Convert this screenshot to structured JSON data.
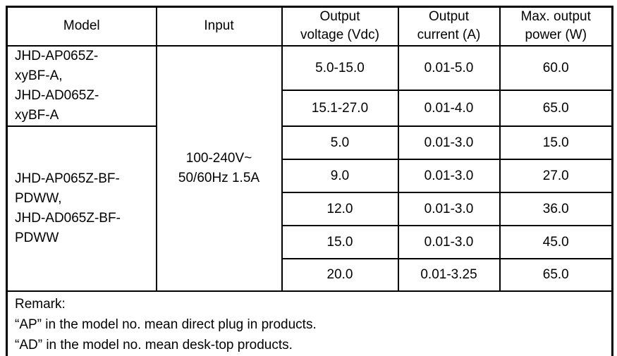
{
  "colors": {
    "background": "#ffffff",
    "text": "#000000",
    "border": "#000000"
  },
  "table": {
    "columns": [
      {
        "label": "Model",
        "lines": [
          "Model"
        ]
      },
      {
        "label": "Input",
        "lines": [
          "Input"
        ]
      },
      {
        "label": "Output voltage (Vdc)",
        "lines": [
          "Output",
          "voltage (Vdc)"
        ]
      },
      {
        "label": "Output current (A)",
        "lines": [
          "Output",
          "current (A)"
        ]
      },
      {
        "label": "Max. output power (W)",
        "lines": [
          "Max. output",
          "power (W)"
        ]
      }
    ],
    "input": {
      "value": "100-240V~ 50/60Hz 1.5A",
      "lines": [
        "100-240V~",
        "50/60Hz 1.5A"
      ]
    },
    "groups": [
      {
        "model": "JHD-AP065Z-xyBF-A, JHD-AD065Z-xyBF-A",
        "model_lines": [
          "JHD-AP065Z-",
          "xyBF-A,",
          "JHD-AD065Z-",
          "xyBF-A"
        ],
        "rows": [
          {
            "voltage": "5.0-15.0",
            "current": "0.01-5.0",
            "power": "60.0"
          },
          {
            "voltage": "15.1-27.0",
            "current": "0.01-4.0",
            "power": "65.0"
          }
        ]
      },
      {
        "model": "JHD-AP065Z-BF-PDWW, JHD-AD065Z-BF-PDWW",
        "model_lines": [
          "JHD-AP065Z-BF-",
          "PDWW,",
          "JHD-AD065Z-BF-",
          "PDWW"
        ],
        "rows": [
          {
            "voltage": "5.0",
            "current": "0.01-3.0",
            "power": "15.0"
          },
          {
            "voltage": "9.0",
            "current": "0.01-3.0",
            "power": "27.0"
          },
          {
            "voltage": "12.0",
            "current": "0.01-3.0",
            "power": "36.0"
          },
          {
            "voltage": "15.0",
            "current": "0.01-3.0",
            "power": "45.0"
          },
          {
            "voltage": "20.0",
            "current": "0.01-3.25",
            "power": "65.0"
          }
        ]
      }
    ],
    "remark": {
      "title": "Remark:",
      "lines": [
        "“AP” in the model no. mean direct plug in products.",
        "“AD” in the model no. mean desk-top products."
      ]
    }
  }
}
